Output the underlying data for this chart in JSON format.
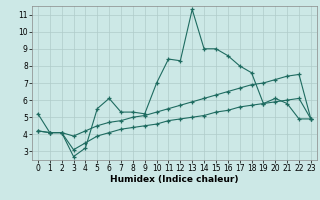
{
  "xlabel": "Humidex (Indice chaleur)",
  "bg_color": "#cce8e6",
  "line_color": "#1e6b60",
  "grid_color": "#b0ccca",
  "xlim": [
    -0.5,
    23.5
  ],
  "ylim": [
    2.5,
    11.5
  ],
  "xticks": [
    0,
    1,
    2,
    3,
    4,
    5,
    6,
    7,
    8,
    9,
    10,
    11,
    12,
    13,
    14,
    15,
    16,
    17,
    18,
    19,
    20,
    21,
    22,
    23
  ],
  "yticks": [
    3,
    4,
    5,
    6,
    7,
    8,
    9,
    10,
    11
  ],
  "line1_x": [
    0,
    1,
    2,
    3,
    4,
    5,
    6,
    7,
    8,
    9,
    10,
    11,
    12,
    13,
    14,
    15,
    16,
    17,
    18,
    19,
    20,
    21,
    22,
    23
  ],
  "line1_y": [
    5.2,
    4.1,
    4.1,
    2.7,
    3.2,
    5.5,
    6.1,
    5.3,
    5.3,
    5.2,
    7.0,
    8.4,
    8.3,
    11.3,
    9.0,
    9.0,
    8.6,
    8.0,
    7.6,
    5.8,
    6.1,
    5.8,
    4.9,
    4.9
  ],
  "line2_x": [
    0,
    1,
    2,
    3,
    4,
    5,
    6,
    7,
    8,
    9,
    10,
    11,
    12,
    13,
    14,
    15,
    16,
    17,
    18,
    19,
    20,
    21,
    22,
    23
  ],
  "line2_y": [
    4.2,
    4.1,
    4.1,
    3.9,
    4.2,
    4.5,
    4.7,
    4.8,
    5.0,
    5.1,
    5.3,
    5.5,
    5.7,
    5.9,
    6.1,
    6.3,
    6.5,
    6.7,
    6.9,
    7.0,
    7.2,
    7.4,
    7.5,
    4.9
  ],
  "line3_x": [
    0,
    1,
    2,
    3,
    4,
    5,
    6,
    7,
    8,
    9,
    10,
    11,
    12,
    13,
    14,
    15,
    16,
    17,
    18,
    19,
    20,
    21,
    22,
    23
  ],
  "line3_y": [
    4.2,
    4.1,
    4.1,
    3.1,
    3.5,
    3.9,
    4.1,
    4.3,
    4.4,
    4.5,
    4.6,
    4.8,
    4.9,
    5.0,
    5.1,
    5.3,
    5.4,
    5.6,
    5.7,
    5.8,
    5.9,
    6.0,
    6.1,
    4.9
  ],
  "xlabel_fontsize": 6.5,
  "tick_fontsize": 5.5
}
